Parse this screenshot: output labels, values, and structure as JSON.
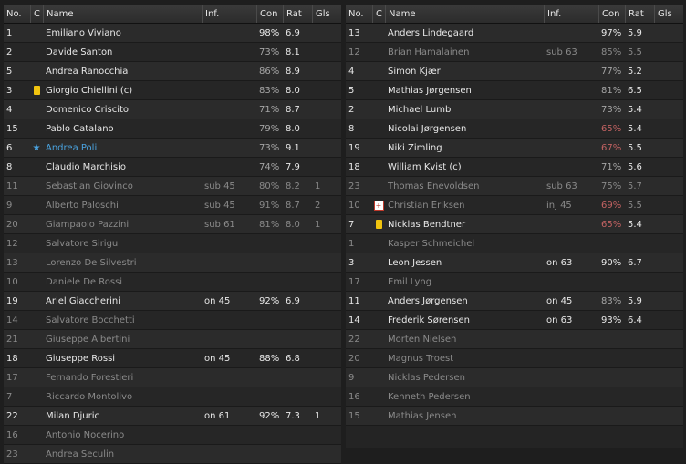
{
  "columns": {
    "no": "No.",
    "c": "C",
    "name": "Name",
    "inf": "Inf.",
    "con": "Con",
    "rat": "Rat",
    "gls": "Gls"
  },
  "left": [
    {
      "no": "1",
      "name": "Emiliano Viviano",
      "inf": "",
      "con": "98%",
      "rat": "6.9",
      "gls": "",
      "dim": false,
      "icon": "",
      "con_color": "green"
    },
    {
      "no": "2",
      "name": "Davide Santon",
      "inf": "",
      "con": "73%",
      "rat": "8.1",
      "gls": "",
      "dim": false,
      "icon": "",
      "con_color": "grey"
    },
    {
      "no": "5",
      "name": "Andrea Ranocchia",
      "inf": "",
      "con": "86%",
      "rat": "8.9",
      "gls": "",
      "dim": false,
      "icon": "",
      "con_color": "grey"
    },
    {
      "no": "3",
      "name": "Giorgio Chiellini (c)",
      "inf": "",
      "con": "83%",
      "rat": "8.0",
      "gls": "",
      "dim": false,
      "icon": "yellow-card",
      "con_color": "grey"
    },
    {
      "no": "4",
      "name": "Domenico Criscito",
      "inf": "",
      "con": "71%",
      "rat": "8.7",
      "gls": "",
      "dim": false,
      "icon": "",
      "con_color": "grey"
    },
    {
      "no": "15",
      "name": "Pablo Catalano",
      "inf": "",
      "con": "79%",
      "rat": "8.0",
      "gls": "",
      "dim": false,
      "icon": "",
      "con_color": "grey"
    },
    {
      "no": "6",
      "name": "Andrea Poli",
      "inf": "",
      "con": "73%",
      "rat": "9.1",
      "gls": "",
      "dim": false,
      "icon": "star",
      "con_color": "grey",
      "highlight": true
    },
    {
      "no": "8",
      "name": "Claudio Marchisio",
      "inf": "",
      "con": "74%",
      "rat": "7.9",
      "gls": "",
      "dim": false,
      "icon": "",
      "con_color": "grey"
    },
    {
      "no": "11",
      "name": "Sebastian Giovinco",
      "inf": "sub 45",
      "con": "80%",
      "rat": "8.2",
      "gls": "1",
      "dim": true,
      "icon": "",
      "con_color": "grey"
    },
    {
      "no": "9",
      "name": "Alberto Paloschi",
      "inf": "sub 45",
      "con": "91%",
      "rat": "8.7",
      "gls": "2",
      "dim": true,
      "icon": "",
      "con_color": "green"
    },
    {
      "no": "20",
      "name": "Giampaolo Pazzini",
      "inf": "sub 61",
      "con": "81%",
      "rat": "8.0",
      "gls": "1",
      "dim": true,
      "icon": "",
      "con_color": "grey"
    },
    {
      "no": "12",
      "name": "Salvatore Sirigu",
      "inf": "",
      "con": "",
      "rat": "",
      "gls": "",
      "dim": true,
      "icon": "",
      "con_color": ""
    },
    {
      "no": "13",
      "name": "Lorenzo De Silvestri",
      "inf": "",
      "con": "",
      "rat": "",
      "gls": "",
      "dim": true,
      "icon": "",
      "con_color": ""
    },
    {
      "no": "10",
      "name": "Daniele De Rossi",
      "inf": "",
      "con": "",
      "rat": "",
      "gls": "",
      "dim": true,
      "icon": "",
      "con_color": ""
    },
    {
      "no": "19",
      "name": "Ariel Giaccherini",
      "inf": "on 45",
      "con": "92%",
      "rat": "6.9",
      "gls": "",
      "dim": false,
      "icon": "",
      "con_color": "green"
    },
    {
      "no": "14",
      "name": "Salvatore Bocchetti",
      "inf": "",
      "con": "",
      "rat": "",
      "gls": "",
      "dim": true,
      "icon": "",
      "con_color": ""
    },
    {
      "no": "21",
      "name": "Giuseppe Albertini",
      "inf": "",
      "con": "",
      "rat": "",
      "gls": "",
      "dim": true,
      "icon": "",
      "con_color": ""
    },
    {
      "no": "18",
      "name": "Giuseppe Rossi",
      "inf": "on 45",
      "con": "88%",
      "rat": "6.8",
      "gls": "",
      "dim": false,
      "icon": "",
      "con_color": "green"
    },
    {
      "no": "17",
      "name": "Fernando Forestieri",
      "inf": "",
      "con": "",
      "rat": "",
      "gls": "",
      "dim": true,
      "icon": "",
      "con_color": ""
    },
    {
      "no": "7",
      "name": "Riccardo Montolivo",
      "inf": "",
      "con": "",
      "rat": "",
      "gls": "",
      "dim": true,
      "icon": "",
      "con_color": ""
    },
    {
      "no": "22",
      "name": "Milan Djuric",
      "inf": "on 61",
      "con": "92%",
      "rat": "7.3",
      "gls": "1",
      "dim": false,
      "icon": "",
      "con_color": "green"
    },
    {
      "no": "16",
      "name": "Antonio Nocerino",
      "inf": "",
      "con": "",
      "rat": "",
      "gls": "",
      "dim": true,
      "icon": "",
      "con_color": ""
    },
    {
      "no": "23",
      "name": "Andrea Seculin",
      "inf": "",
      "con": "",
      "rat": "",
      "gls": "",
      "dim": true,
      "icon": "",
      "con_color": ""
    }
  ],
  "right": [
    {
      "no": "13",
      "name": "Anders Lindegaard",
      "inf": "",
      "con": "97%",
      "rat": "5.9",
      "gls": "",
      "dim": false,
      "icon": "",
      "con_color": "green"
    },
    {
      "no": "12",
      "name": "Brian Hamalainen",
      "inf": "sub 63",
      "con": "85%",
      "rat": "5.5",
      "gls": "",
      "dim": true,
      "icon": "",
      "con_color": "grey"
    },
    {
      "no": "4",
      "name": "Simon Kjær",
      "inf": "",
      "con": "77%",
      "rat": "5.2",
      "gls": "",
      "dim": false,
      "icon": "",
      "con_color": "grey"
    },
    {
      "no": "5",
      "name": "Mathias Jørgensen",
      "inf": "",
      "con": "81%",
      "rat": "6.5",
      "gls": "",
      "dim": false,
      "icon": "",
      "con_color": "grey"
    },
    {
      "no": "2",
      "name": "Michael Lumb",
      "inf": "",
      "con": "73%",
      "rat": "5.4",
      "gls": "",
      "dim": false,
      "icon": "",
      "con_color": "grey"
    },
    {
      "no": "8",
      "name": "Nicolai Jørgensen",
      "inf": "",
      "con": "65%",
      "rat": "5.4",
      "gls": "",
      "dim": false,
      "icon": "",
      "con_color": "red"
    },
    {
      "no": "19",
      "name": "Niki Zimling",
      "inf": "",
      "con": "67%",
      "rat": "5.5",
      "gls": "",
      "dim": false,
      "icon": "",
      "con_color": "red"
    },
    {
      "no": "18",
      "name": "William Kvist (c)",
      "inf": "",
      "con": "71%",
      "rat": "5.6",
      "gls": "",
      "dim": false,
      "icon": "",
      "con_color": "grey"
    },
    {
      "no": "23",
      "name": "Thomas Enevoldsen",
      "inf": "sub 63",
      "con": "75%",
      "rat": "5.7",
      "gls": "",
      "dim": true,
      "icon": "",
      "con_color": "grey"
    },
    {
      "no": "10",
      "name": "Christian Eriksen",
      "inf": "inj 45",
      "con": "69%",
      "rat": "5.5",
      "gls": "",
      "dim": true,
      "icon": "injury",
      "con_color": "red"
    },
    {
      "no": "7",
      "name": "Nicklas Bendtner",
      "inf": "",
      "con": "65%",
      "rat": "5.4",
      "gls": "",
      "dim": false,
      "icon": "yellow-card",
      "con_color": "red"
    },
    {
      "no": "1",
      "name": "Kasper Schmeichel",
      "inf": "",
      "con": "",
      "rat": "",
      "gls": "",
      "dim": true,
      "icon": "",
      "con_color": ""
    },
    {
      "no": "3",
      "name": "Leon Jessen",
      "inf": "on 63",
      "con": "90%",
      "rat": "6.7",
      "gls": "",
      "dim": false,
      "icon": "",
      "con_color": "green"
    },
    {
      "no": "17",
      "name": "Emil Lyng",
      "inf": "",
      "con": "",
      "rat": "",
      "gls": "",
      "dim": true,
      "icon": "",
      "con_color": ""
    },
    {
      "no": "11",
      "name": "Anders Jørgensen",
      "inf": "on 45",
      "con": "83%",
      "rat": "5.9",
      "gls": "",
      "dim": false,
      "icon": "",
      "con_color": "grey"
    },
    {
      "no": "14",
      "name": "Frederik Sørensen",
      "inf": "on 63",
      "con": "93%",
      "rat": "6.4",
      "gls": "",
      "dim": false,
      "icon": "",
      "con_color": "green"
    },
    {
      "no": "22",
      "name": "Morten Nielsen",
      "inf": "",
      "con": "",
      "rat": "",
      "gls": "",
      "dim": true,
      "icon": "",
      "con_color": ""
    },
    {
      "no": "20",
      "name": "Magnus Troest",
      "inf": "",
      "con": "",
      "rat": "",
      "gls": "",
      "dim": true,
      "icon": "",
      "con_color": ""
    },
    {
      "no": "9",
      "name": "Nicklas Pedersen",
      "inf": "",
      "con": "",
      "rat": "",
      "gls": "",
      "dim": true,
      "icon": "",
      "con_color": ""
    },
    {
      "no": "16",
      "name": "Kenneth Pedersen",
      "inf": "",
      "con": "",
      "rat": "",
      "gls": "",
      "dim": true,
      "icon": "",
      "con_color": ""
    },
    {
      "no": "15",
      "name": "Mathias Jensen",
      "inf": "",
      "con": "",
      "rat": "",
      "gls": "",
      "dim": true,
      "icon": "",
      "con_color": ""
    }
  ]
}
